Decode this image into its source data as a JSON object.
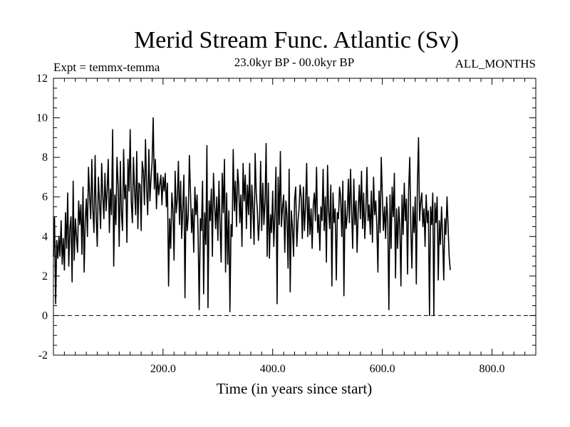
{
  "chart_data": {
    "type": "line",
    "title": "Merid Stream Func. Atlantic (Sv)",
    "subtitle": "23.0kyr BP - 00.0kyr BP",
    "left_label": "Expt = temmx-temma",
    "right_label": "ALL_MONTHS",
    "xlabel": "Time (in years since start)",
    "ylabel": "",
    "xlim": [
      0,
      880
    ],
    "ylim": [
      -2,
      12
    ],
    "x_ticks": [
      200,
      400,
      600,
      800
    ],
    "x_tick_labels": [
      "200.0",
      "400.0",
      "600.0",
      "800.0"
    ],
    "y_ticks": [
      -2,
      0,
      2,
      4,
      6,
      8,
      10,
      12
    ],
    "y_tick_labels": [
      "-2",
      "0",
      "2",
      "4",
      "6",
      "8",
      "10",
      "12"
    ],
    "reference_line": {
      "y": 0,
      "style": "dashed"
    },
    "series": [
      {
        "name": "Merid Stream Func. Atlantic",
        "color": "#000000",
        "x_start": 0,
        "x_step": 2,
        "values": [
          3.0,
          5.0,
          0.6,
          3.8,
          2.9,
          4.0,
          3.0,
          4.8,
          2.6,
          3.9,
          2.3,
          5.2,
          3.4,
          6.2,
          2.5,
          4.4,
          5.0,
          1.7,
          6.8,
          2.8,
          4.9,
          4.0,
          3.2,
          5.8,
          4.6,
          5.6,
          3.1,
          6.5,
          2.2,
          4.8,
          5.9,
          4.0,
          7.5,
          6.0,
          4.9,
          7.9,
          5.3,
          4.2,
          8.1,
          5.0,
          3.5,
          7.0,
          5.8,
          4.4,
          7.7,
          6.1,
          4.9,
          7.2,
          5.3,
          6.3,
          7.9,
          4.2,
          6.4,
          5.1,
          9.4,
          2.5,
          6.1,
          4.6,
          8.0,
          6.6,
          3.5,
          7.8,
          5.2,
          4.3,
          8.4,
          5.9,
          6.6,
          3.7,
          7.9,
          6.3,
          9.4,
          5.8,
          4.7,
          8.0,
          6.3,
          5.1,
          8.3,
          4.4,
          6.7,
          6.6,
          4.3,
          7.8,
          7.3,
          5.6,
          8.9,
          6.4,
          5.1,
          8.4,
          5.8,
          6.9,
          7.8,
          10.0,
          6.4,
          7.9,
          5.4,
          7.2,
          6.1,
          6.6,
          7.1,
          5.6,
          7.0,
          6.3,
          7.2,
          5.5,
          6.7,
          1.5,
          4.9,
          3.4,
          6.2,
          5.4,
          2.8,
          7.3,
          5.2,
          5.9,
          7.8,
          4.6,
          6.8,
          3.9,
          5.5,
          7.1,
          0.9,
          6.0,
          4.3,
          5.1,
          8.1,
          6.3,
          4.2,
          5.4,
          3.2,
          6.5,
          5.1,
          6.1,
          4.0,
          0.3,
          4.9,
          4.3,
          6.8,
          1.1,
          5.2,
          3.6,
          8.6,
          0.4,
          5.8,
          4.8,
          6.4,
          3.0,
          7.2,
          5.6,
          4.4,
          6.0,
          3.8,
          6.8,
          4.5,
          2.7,
          7.2,
          5.2,
          7.9,
          2.2,
          6.2,
          2.6,
          5.3,
          0.2,
          4.6,
          4.0,
          8.4,
          5.3,
          6.8,
          4.5,
          7.4,
          6.6,
          4.7,
          6.1,
          3.5,
          7.7,
          5.8,
          7.1,
          4.4,
          6.6,
          5.1,
          7.7,
          3.9,
          6.6,
          5.4,
          3.6,
          8.2,
          6.2,
          5.3,
          3.8,
          4.9,
          7.8,
          4.3,
          6.7,
          4.6,
          5.8,
          8.7,
          3.0,
          6.7,
          2.9,
          5.1,
          4.2,
          6.3,
          3.5,
          5.2,
          7.5,
          0.6,
          7.0,
          4.6,
          8.3,
          4.5,
          5.5,
          6.1,
          3.2,
          5.8,
          5.1,
          2.4,
          7.4,
          1.2,
          5.3,
          4.5,
          3.0,
          5.9,
          6.5,
          3.5,
          4.7,
          5.4,
          6.6,
          6.0,
          3.9,
          6.5,
          4.3,
          5.6,
          7.7,
          4.0,
          6.0,
          4.1,
          5.4,
          3.4,
          5.6,
          6.2,
          4.8,
          7.5,
          4.2,
          5.1,
          3.3,
          5.5,
          4.8,
          7.4,
          4.3,
          6.0,
          2.7,
          7.6,
          5.3,
          4.4,
          6.6,
          1.5,
          6.2,
          4.7,
          5.4,
          1.8,
          5.2,
          4.9,
          6.5,
          6.0,
          4.0,
          6.8,
          1.0,
          5.8,
          4.4,
          5.1,
          6.9,
          4.7,
          7.4,
          5.3,
          3.4,
          6.9,
          4.6,
          5.8,
          3.2,
          5.3,
          6.6,
          4.9,
          7.3,
          4.4,
          6.2,
          3.9,
          5.3,
          7.5,
          4.8,
          5.6,
          4.1,
          6.3,
          3.7,
          7.0,
          5.1,
          5.8,
          4.5,
          2.2,
          6.3,
          4.2,
          8.0,
          6.1,
          4.3,
          5.5,
          3.9,
          6.0,
          4.7,
          0.3,
          6.1,
          3.4,
          6.5,
          5.0,
          7.2,
          1.9,
          5.4,
          3.4,
          5.5,
          4.5,
          1.5,
          6.1,
          4.1,
          6.7,
          4.8,
          5.9,
          2.1,
          6.3,
          8.0,
          4.4,
          2.4,
          5.5,
          4.2,
          6.0,
          1.6,
          6.5,
          9.0,
          4.8,
          5.7,
          6.2,
          4.5,
          5.4,
          3.5,
          6.1,
          4.7,
          5.3,
          0.0,
          5.5,
          4.6,
          6.2,
          0.0,
          5.7,
          4.7,
          6.0,
          1.8,
          4.8,
          3.6,
          5.5,
          4.0,
          1.8,
          4.9,
          4.1,
          6.0,
          4.5,
          3.0,
          2.3
        ]
      }
    ]
  }
}
